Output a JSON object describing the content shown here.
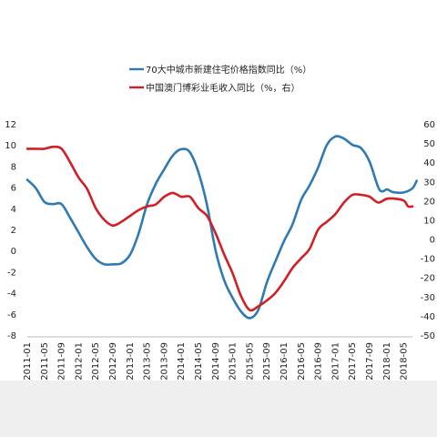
{
  "chart_data": {
    "type": "line",
    "title": "",
    "xlabel": "",
    "ylabel": "",
    "y_left": {
      "min": -8,
      "max": 12,
      "ticks": [
        -8,
        -6,
        -4,
        -2,
        0,
        2,
        4,
        6,
        8,
        10,
        12
      ],
      "labels": [
        "-8",
        "-6",
        "-4",
        "-2",
        "0",
        "2",
        "4",
        "6",
        "8",
        "10",
        "12"
      ]
    },
    "y_right": {
      "min": -50,
      "max": 60,
      "ticks": [
        -50,
        -40,
        -30,
        -20,
        -10,
        0,
        10,
        20,
        30,
        40,
        50,
        60
      ],
      "labels": [
        "-50",
        "-40",
        "-30",
        "-20",
        "-10",
        "0",
        "10",
        "20",
        "30",
        "40",
        "50",
        "60"
      ]
    },
    "x_tick_labels": [
      "2011-01",
      "2011-05",
      "2011-09",
      "2012-01",
      "2012-05",
      "2012-09",
      "2013-01",
      "2013-05",
      "2013-09",
      "2014-01",
      "2014-05",
      "2014-09",
      "2015-01",
      "2015-05",
      "2015-09",
      "2016-01",
      "2016-05",
      "2016-09",
      "2017-01",
      "2017-05",
      "2017-09",
      "2018-01",
      "2018-05"
    ],
    "legend_position": "top",
    "grid": false,
    "series": [
      {
        "name": "70大中城市新建住宅价格指数同比（%）",
        "axis": "left",
        "color": "#2f7ab5",
        "points": [
          [
            "2011-01",
            6.7
          ],
          [
            "2011-03",
            5.9
          ],
          [
            "2011-05",
            4.6
          ],
          [
            "2011-07",
            4.4
          ],
          [
            "2011-09",
            4.4
          ],
          [
            "2011-11",
            3.1
          ],
          [
            "2012-01",
            1.7
          ],
          [
            "2012-03",
            0.3
          ],
          [
            "2012-05",
            -0.8
          ],
          [
            "2012-07",
            -1.3
          ],
          [
            "2012-09",
            -1.3
          ],
          [
            "2012-11",
            -1.2
          ],
          [
            "2013-01",
            -0.4
          ],
          [
            "2013-03",
            1.6
          ],
          [
            "2013-05",
            4.4
          ],
          [
            "2013-07",
            6.3
          ],
          [
            "2013-09",
            7.7
          ],
          [
            "2013-11",
            9.0
          ],
          [
            "2014-01",
            9.6
          ],
          [
            "2014-03",
            9.3
          ],
          [
            "2014-05",
            7.4
          ],
          [
            "2014-07",
            4.3
          ],
          [
            "2014-09",
            0.0
          ],
          [
            "2014-11",
            -2.8
          ],
          [
            "2015-01",
            -4.5
          ],
          [
            "2015-03",
            -5.8
          ],
          [
            "2015-05",
            -6.4
          ],
          [
            "2015-07",
            -5.6
          ],
          [
            "2015-09",
            -3.0
          ],
          [
            "2015-11",
            -1.0
          ],
          [
            "2016-01",
            0.9
          ],
          [
            "2016-03",
            2.5
          ],
          [
            "2016-05",
            4.8
          ],
          [
            "2016-07",
            6.2
          ],
          [
            "2016-09",
            7.9
          ],
          [
            "2016-11",
            10.0
          ],
          [
            "2017-01",
            10.8
          ],
          [
            "2017-03",
            10.6
          ],
          [
            "2017-05",
            10.0
          ],
          [
            "2017-07",
            9.7
          ],
          [
            "2017-09",
            8.4
          ],
          [
            "2017-11",
            6.0
          ],
          [
            "2017-12",
            5.6
          ],
          [
            "2018-01",
            5.8
          ],
          [
            "2018-02",
            5.6
          ],
          [
            "2018-03",
            5.5
          ],
          [
            "2018-05",
            5.5
          ],
          [
            "2018-07",
            5.9
          ],
          [
            "2018-08",
            6.6
          ]
        ]
      },
      {
        "name": "中国澳门博彩业毛收入同比（%，右）",
        "axis": "right",
        "color": "#d11f25",
        "points": [
          [
            "2011-01",
            47
          ],
          [
            "2011-03",
            47
          ],
          [
            "2011-05",
            47
          ],
          [
            "2011-07",
            48
          ],
          [
            "2011-09",
            47
          ],
          [
            "2011-11",
            40
          ],
          [
            "2012-01",
            32
          ],
          [
            "2012-03",
            26
          ],
          [
            "2012-05",
            16
          ],
          [
            "2012-07",
            10
          ],
          [
            "2012-09",
            7
          ],
          [
            "2012-11",
            9
          ],
          [
            "2013-01",
            12
          ],
          [
            "2013-03",
            15
          ],
          [
            "2013-05",
            17
          ],
          [
            "2013-07",
            18
          ],
          [
            "2013-09",
            22
          ],
          [
            "2013-11",
            24
          ],
          [
            "2014-01",
            22
          ],
          [
            "2014-03",
            22
          ],
          [
            "2014-05",
            16
          ],
          [
            "2014-07",
            12
          ],
          [
            "2014-09",
            3
          ],
          [
            "2014-11",
            -8
          ],
          [
            "2015-01",
            -18
          ],
          [
            "2015-03",
            -30
          ],
          [
            "2015-05",
            -37
          ],
          [
            "2015-07",
            -35
          ],
          [
            "2015-09",
            -32
          ],
          [
            "2015-11",
            -28
          ],
          [
            "2016-01",
            -22
          ],
          [
            "2016-03",
            -15
          ],
          [
            "2016-05",
            -10
          ],
          [
            "2016-07",
            -5
          ],
          [
            "2016-09",
            5
          ],
          [
            "2016-11",
            9
          ],
          [
            "2017-01",
            13
          ],
          [
            "2017-03",
            19
          ],
          [
            "2017-05",
            23
          ],
          [
            "2017-07",
            23
          ],
          [
            "2017-09",
            22
          ],
          [
            "2017-11",
            19
          ],
          [
            "2018-01",
            21
          ],
          [
            "2018-03",
            21
          ],
          [
            "2018-05",
            20
          ],
          [
            "2018-06",
            17
          ],
          [
            "2018-07",
            17
          ]
        ]
      }
    ]
  }
}
